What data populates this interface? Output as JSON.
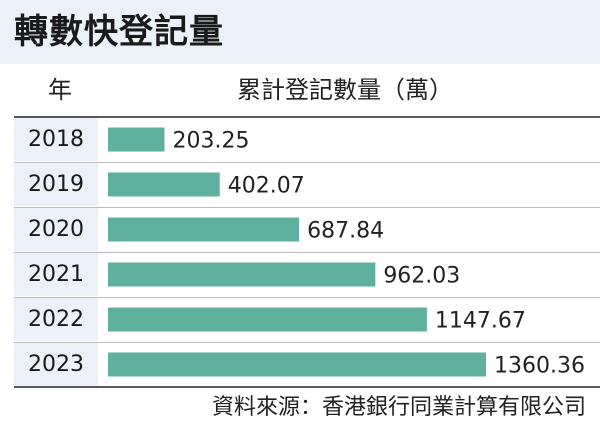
{
  "title": "轉數快登記量",
  "headers": {
    "year": "年",
    "value": "累計登記數量（萬）"
  },
  "source": "資料來源：香港銀行同業計算有限公司",
  "colors": {
    "bar": "#5fb09e",
    "band": "#ebf1f8"
  },
  "chart_data": {
    "type": "bar",
    "orientation": "horizontal",
    "categories": [
      "2018",
      "2019",
      "2020",
      "2021",
      "2022",
      "2023"
    ],
    "values": [
      203.25,
      402.07,
      687.84,
      962.03,
      1147.67,
      1360.36
    ],
    "value_labels": [
      "203.25",
      "402.07",
      "687.84",
      "962.03",
      "1147.67",
      "1360.36"
    ],
    "title": "轉數快登記量",
    "xlabel": "累計登記數量（萬）",
    "ylabel": "年",
    "xlim": [
      0,
      1360.36
    ],
    "grid": false,
    "legend": "none"
  }
}
